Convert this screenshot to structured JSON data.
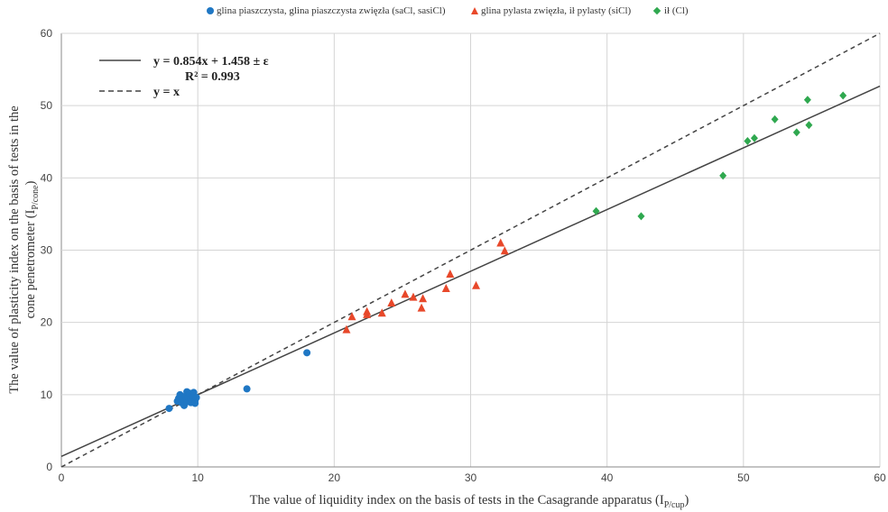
{
  "chart_data": {
    "type": "scatter",
    "xlim": [
      0,
      60
    ],
    "ylim": [
      0,
      60
    ],
    "xticks": [
      0,
      10,
      20,
      30,
      40,
      50,
      60
    ],
    "yticks": [
      0,
      10,
      20,
      30,
      40,
      50,
      60
    ],
    "grid": "on",
    "legend_position": "top",
    "xlabel": "The value of liquidity index on the basis of tests in the Casagrande apparatus (I",
    "xlabel_sub": "P/cup",
    "xlabel_end": ")",
    "ylabel_line1": "The value of plasticity index on the basis of tests in the",
    "ylabel_line2": "cone penetrometer (I",
    "ylabel_sub": "P/cone",
    "ylabel_end": ")",
    "series": [
      {
        "name": "glina piaszczysta, glina piaszczysta zwięzła (saCl, sasiCl)",
        "marker": "circle",
        "color": "#1f77c4",
        "points": [
          [
            7.9,
            8.1
          ],
          [
            8.5,
            9.1
          ],
          [
            8.6,
            9.5
          ],
          [
            8.7,
            10.0
          ],
          [
            8.8,
            8.9
          ],
          [
            8.9,
            9.3
          ],
          [
            9.0,
            8.5
          ],
          [
            9.1,
            9.8
          ],
          [
            9.2,
            10.4
          ],
          [
            9.2,
            9.0
          ],
          [
            9.3,
            9.6
          ],
          [
            9.4,
            10.2
          ],
          [
            9.5,
            8.9
          ],
          [
            9.5,
            9.4
          ],
          [
            9.6,
            9.9
          ],
          [
            9.7,
            10.3
          ],
          [
            9.8,
            9.2
          ],
          [
            9.8,
            8.8
          ],
          [
            9.9,
            9.6
          ],
          [
            13.6,
            10.8
          ],
          [
            18.0,
            15.8
          ]
        ]
      },
      {
        "name": "glina pylasta zwięzła, ił pylasty (siCl)",
        "marker": "triangle",
        "color": "#e8482a",
        "points": [
          [
            20.9,
            19.0
          ],
          [
            21.3,
            20.8
          ],
          [
            22.4,
            21.5
          ],
          [
            22.4,
            21.1
          ],
          [
            23.5,
            21.3
          ],
          [
            24.2,
            22.7
          ],
          [
            25.2,
            23.9
          ],
          [
            25.8,
            23.5
          ],
          [
            26.4,
            22.0
          ],
          [
            26.5,
            23.3
          ],
          [
            28.2,
            24.7
          ],
          [
            28.5,
            26.7
          ],
          [
            30.4,
            25.1
          ],
          [
            32.2,
            31.0
          ],
          [
            32.5,
            29.9
          ]
        ]
      },
      {
        "name": "ił (Cl)",
        "marker": "diamond",
        "color": "#2fa84f",
        "points": [
          [
            39.2,
            35.4
          ],
          [
            42.5,
            34.7
          ],
          [
            48.5,
            40.3
          ],
          [
            50.3,
            45.1
          ],
          [
            50.8,
            45.5
          ],
          [
            52.3,
            48.1
          ],
          [
            53.9,
            46.3
          ],
          [
            54.7,
            50.8
          ],
          [
            54.8,
            47.3
          ],
          [
            57.3,
            51.4
          ]
        ]
      }
    ],
    "lines": [
      {
        "label": "y = 0.854x + 1.458 ± ε",
        "label2": "R² = 0.993",
        "style": "solid",
        "slope": 0.854,
        "intercept": 1.458,
        "color": "#444444"
      },
      {
        "label": "y = x",
        "style": "dashed",
        "slope": 1,
        "intercept": 0,
        "color": "#444444"
      }
    ]
  }
}
